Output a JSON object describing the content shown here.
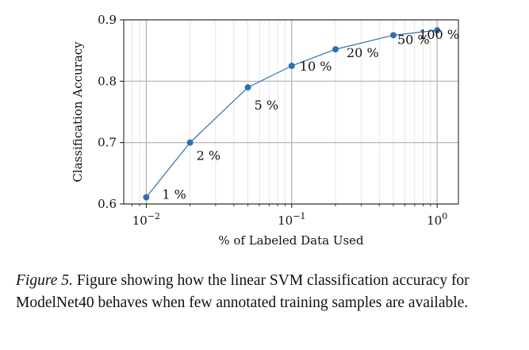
{
  "chart_data": {
    "type": "line",
    "x_scale": "log",
    "x": [
      0.01,
      0.02,
      0.05,
      0.1,
      0.2,
      0.5,
      1.0
    ],
    "values": [
      0.611,
      0.7,
      0.79,
      0.825,
      0.852,
      0.875,
      0.883
    ],
    "point_labels": [
      "1 %",
      "2 %",
      "5 %",
      "10 %",
      "20 %",
      "50 %",
      "100 %"
    ],
    "xlabel": "% of Labeled Data Used",
    "ylabel": "Classification Accuracy",
    "xlim": [
      0.007,
      1.4
    ],
    "ylim": [
      0.6,
      0.9
    ],
    "x_ticks": [
      {
        "value": 0.01,
        "base": "10",
        "exp": "−2"
      },
      {
        "value": 0.1,
        "base": "10",
        "exp": "−1"
      },
      {
        "value": 1.0,
        "base": "10",
        "exp": "0"
      }
    ],
    "y_ticks": [
      {
        "value": 0.6,
        "label": "0.6"
      },
      {
        "value": 0.7,
        "label": "0.7"
      },
      {
        "value": 0.8,
        "label": "0.8"
      },
      {
        "value": 0.9,
        "label": "0.9"
      }
    ],
    "grid": true,
    "line_color": "#3070b0",
    "grid_color": "#b0b0b0"
  },
  "caption": {
    "label": "Figure 5.",
    "text": " Figure showing how the linear SVM classification accuracy for ModelNet40 behaves when few annotated training samples are available."
  }
}
